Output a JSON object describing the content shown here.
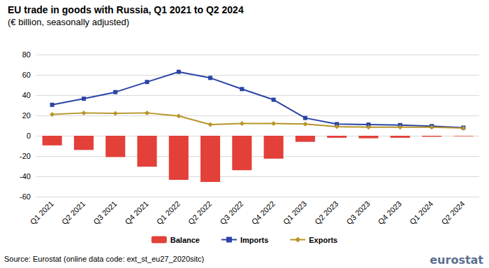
{
  "chart_data": {
    "type": "bar",
    "title": "EU trade in goods with Russia, Q1 2021 to Q2 2024",
    "subtitle": "(€ billion, seasonally adjusted)",
    "source": "Source: Eurostat (online data code: ext_st_eu27_2020sitc)",
    "logo": "eurostat",
    "categories": [
      "Q1 2021",
      "Q2 2021",
      "Q3 2021",
      "Q4 2021",
      "Q1 2022",
      "Q2 2022",
      "Q3 2022",
      "Q4 2022",
      "Q1 2023",
      "Q2 2023",
      "Q3 2023",
      "Q4 2023",
      "Q1 2024",
      "Q2 2024"
    ],
    "series": [
      {
        "name": "Balance",
        "type": "bar",
        "color": "#e3403a",
        "values": [
          -9.5,
          -14,
          -21,
          -30.5,
          -43.5,
          -45.5,
          -34,
          -22.5,
          -6,
          -2,
          -2.5,
          -2,
          -1,
          -0.5
        ]
      },
      {
        "name": "Imports",
        "type": "line",
        "color": "#2a44a6",
        "marker": "square",
        "values": [
          30.5,
          36.5,
          43,
          53,
          63,
          57,
          46,
          35.5,
          17.5,
          11.5,
          11,
          10.5,
          9.5,
          8
        ]
      },
      {
        "name": "Exports",
        "type": "line",
        "color": "#b8952a",
        "marker": "diamond",
        "values": [
          21,
          22.5,
          22,
          22.5,
          19.5,
          11,
          12,
          12,
          11.5,
          9,
          8.5,
          8.5,
          8.5,
          7.5
        ]
      }
    ],
    "ylim": [
      -60,
      80
    ],
    "yticks": [
      -60,
      -40,
      -20,
      0,
      20,
      40,
      60,
      80
    ],
    "grid": true,
    "legend": "bottom"
  }
}
